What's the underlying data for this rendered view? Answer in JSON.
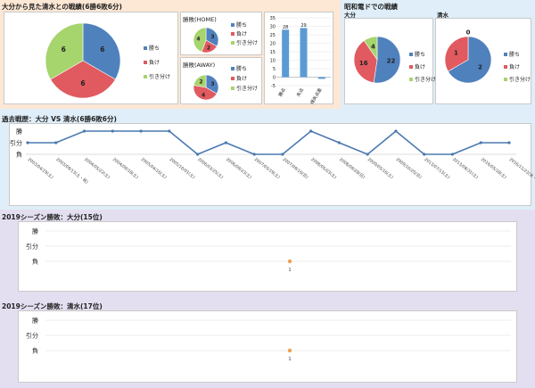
{
  "section1": {
    "title": "大分から見た清水との戦績(6勝6敗6分)",
    "overall_pie": {
      "values": [
        6,
        6,
        6
      ],
      "labels": [
        "勝ち",
        "負け",
        "引き分け"
      ]
    },
    "home": {
      "title": "勝敗(HOME)",
      "values": [
        3,
        2,
        4
      ],
      "labels": [
        "勝ち",
        "負け",
        "引き分け"
      ]
    },
    "away": {
      "title": "勝敗(AWAY)",
      "values": [
        3,
        4,
        2
      ],
      "labels": [
        "勝ち",
        "負け",
        "引き分け"
      ]
    },
    "goals": {
      "categories": [
        "勝点",
        "失点",
        "得失点差"
      ],
      "values": [
        28,
        29,
        -1
      ],
      "ylim": [
        -5,
        35
      ],
      "ticks": [
        35,
        30,
        25,
        20,
        15,
        10,
        5,
        0,
        -5
      ]
    }
  },
  "section2": {
    "title": "昭和電ドでの戦績",
    "oita": {
      "title": "大分",
      "values": [
        22,
        16,
        4
      ],
      "labels": [
        "勝ち",
        "負け",
        "引き分け"
      ]
    },
    "shimizu": {
      "title": "清水",
      "values": [
        2,
        1,
        0
      ],
      "labels": [
        "勝ち",
        "負け",
        "引き分け"
      ]
    }
  },
  "section3": {
    "title": "過去戦歴：大分 VS 清水(6勝6敗6分)",
    "y_labels": [
      "勝",
      "引分",
      "負"
    ],
    "dates": [
      "2003/04/19(土)",
      "2003/09/13(土・祝)",
      "2004/05/22(土)",
      "2004/09/18(土)",
      "2005/04/16(土)",
      "2005/10/01(土)",
      "2006/03/25(土)",
      "2006/09/23(土)",
      "2007/05/19(土)",
      "2007/09/16(日)",
      "2008/05/03(土)",
      "2008/09/28(日)",
      "2009/05/16(土)",
      "2009/10/25(日)",
      "2013/07/13(土)",
      "2013/08/31(土)",
      "2016/05/18(土)",
      "2016/11/23(水・祝)"
    ],
    "results": [
      "draw",
      "draw",
      "win",
      "win",
      "win",
      "win",
      "loss",
      "draw",
      "loss",
      "loss",
      "win",
      "draw",
      "loss",
      "win",
      "loss",
      "loss",
      "draw",
      "draw"
    ]
  },
  "section4": {
    "title": "2019シーズン勝敗：大分(15位)",
    "y_labels": [
      "勝",
      "引分",
      "負"
    ],
    "x_label": "1",
    "result": "loss"
  },
  "section5": {
    "title": "2019シーズン勝敗：清水(17位)",
    "y_labels": [
      "勝",
      "引分",
      "負"
    ],
    "x_label": "1",
    "result": "loss"
  },
  "colors": {
    "win": "#4f81bd",
    "loss": "#e05a5f",
    "draw": "#a6d46d",
    "line": "#4a78b0",
    "marker": "#f0a050",
    "bg1": "#fde7d5",
    "bg2": "#dfeef8",
    "bg3": "#e4dff0"
  }
}
